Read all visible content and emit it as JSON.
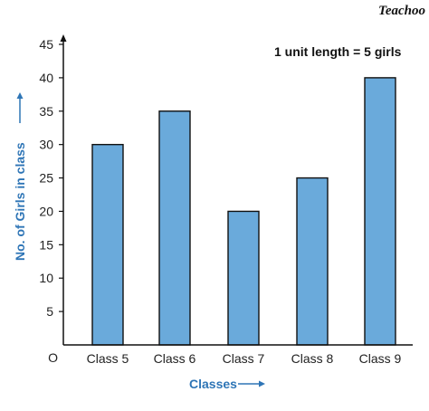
{
  "watermark": "Teachoo",
  "note": "1 unit length = 5 girls",
  "origin_label": "O",
  "chart_data": {
    "type": "bar",
    "categories": [
      "Class 5",
      "Class 6",
      "Class 7",
      "Class 8",
      "Class 9"
    ],
    "values": [
      30,
      35,
      20,
      25,
      40
    ],
    "xlabel": "Classes",
    "ylabel": "No. of Girls in class",
    "ylim": [
      0,
      45
    ],
    "yticks": [
      5,
      10,
      15,
      20,
      25,
      30,
      35,
      40,
      45
    ],
    "grid": false,
    "bar_color": "#6aaadb",
    "bar_edge_color": "#111111",
    "axis_title_color": "#2e75b6"
  }
}
